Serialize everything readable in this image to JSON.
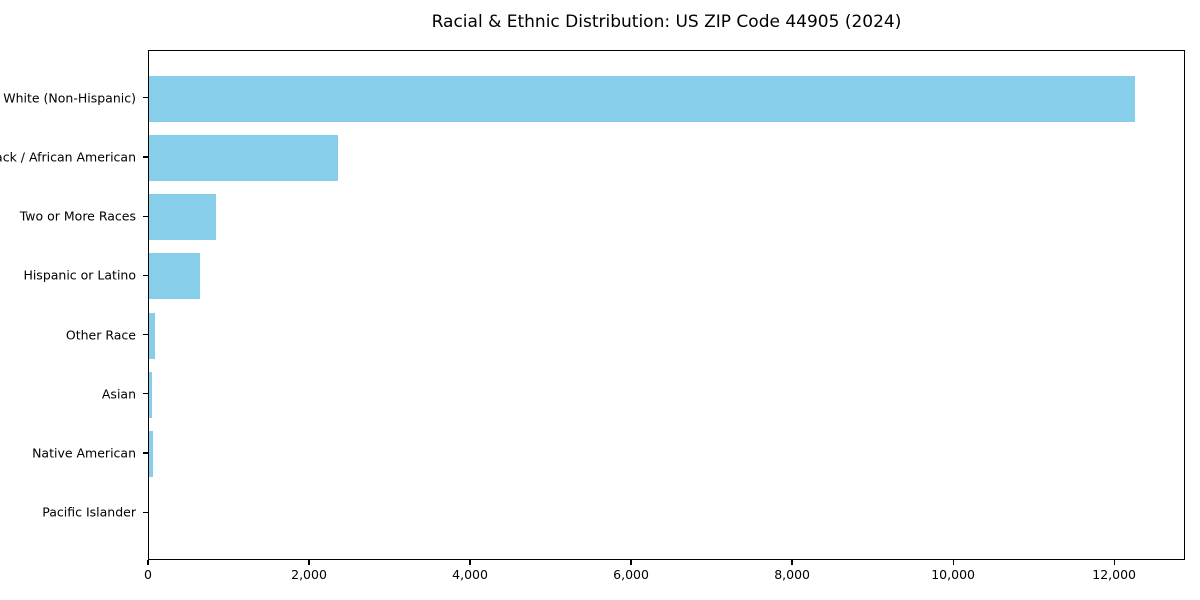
{
  "figure": {
    "background": "#ffffff"
  },
  "chart_data": {
    "type": "bar",
    "orientation": "horizontal",
    "title": "Racial & Ethnic Distribution: US ZIP Code 44905 (2024)",
    "categories": [
      "White (Non-Hispanic)",
      "Black / African American",
      "Two or More Races",
      "Hispanic or Latino",
      "Other Race",
      "Asian",
      "Native American",
      "Pacific Islander"
    ],
    "values": [
      12270,
      2350,
      830,
      630,
      70,
      35,
      45,
      0
    ],
    "bar_color": "#87CEEB",
    "xlim": [
      0,
      12880
    ],
    "x_ticks": [
      0,
      2000,
      4000,
      6000,
      8000,
      10000,
      12000
    ],
    "x_tick_labels": [
      "0",
      "2,000",
      "4,000",
      "6,000",
      "8,000",
      "10,000",
      "12,000"
    ],
    "xlabel": "",
    "ylabel": "",
    "grid": false,
    "legend": "none",
    "axis_color": "#000000",
    "text_color": "#000000"
  }
}
